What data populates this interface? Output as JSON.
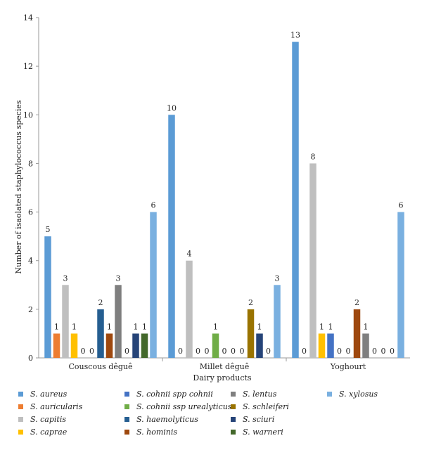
{
  "chart_data": {
    "type": "bar",
    "xlabel": "Dairy products",
    "ylabel": "Number of isaolated staphylococcus species",
    "ylim": [
      0,
      14
    ],
    "yticks": [
      0,
      2,
      4,
      6,
      8,
      10,
      12,
      14
    ],
    "grid": false,
    "legend_position": "bottom",
    "categories": [
      "Couscous dêguê",
      "Millet dêguê",
      "Yoghourt"
    ],
    "series": [
      {
        "name": "S. aureus",
        "color": "#5b9bd5",
        "values": [
          5,
          10,
          13
        ]
      },
      {
        "name": "S. auricularis",
        "color": "#ed7d31",
        "values": [
          1,
          0,
          0
        ]
      },
      {
        "name": "S. capitis",
        "color": "#bfbfbf",
        "values": [
          3,
          4,
          8
        ]
      },
      {
        "name": "S. caprae",
        "color": "#ffc000",
        "values": [
          1,
          0,
          1
        ]
      },
      {
        "name": "S. cohnii spp cohnii",
        "color": "#4472c4",
        "values": [
          0,
          0,
          1
        ]
      },
      {
        "name": "S. cohnii ssp urealyticus",
        "color": "#70ad47",
        "values": [
          0,
          1,
          0
        ]
      },
      {
        "name": "S. haemolyticus",
        "color": "#255e91",
        "values": [
          2,
          0,
          0
        ]
      },
      {
        "name": "S. hominis",
        "color": "#9e480e",
        "values": [
          1,
          0,
          2
        ]
      },
      {
        "name": "S. lentus",
        "color": "#7f7f7f",
        "values": [
          3,
          0,
          1
        ]
      },
      {
        "name": "S. schleiferi",
        "color": "#997300",
        "values": [
          0,
          2,
          0
        ]
      },
      {
        "name": "S. sciuri",
        "color": "#264478",
        "values": [
          1,
          1,
          0
        ]
      },
      {
        "name": "S. warneri",
        "color": "#43682b",
        "values": [
          1,
          0,
          0
        ]
      },
      {
        "name": "S. xylosus",
        "color": "#7ab0e0",
        "values": [
          6,
          3,
          6
        ]
      }
    ]
  }
}
